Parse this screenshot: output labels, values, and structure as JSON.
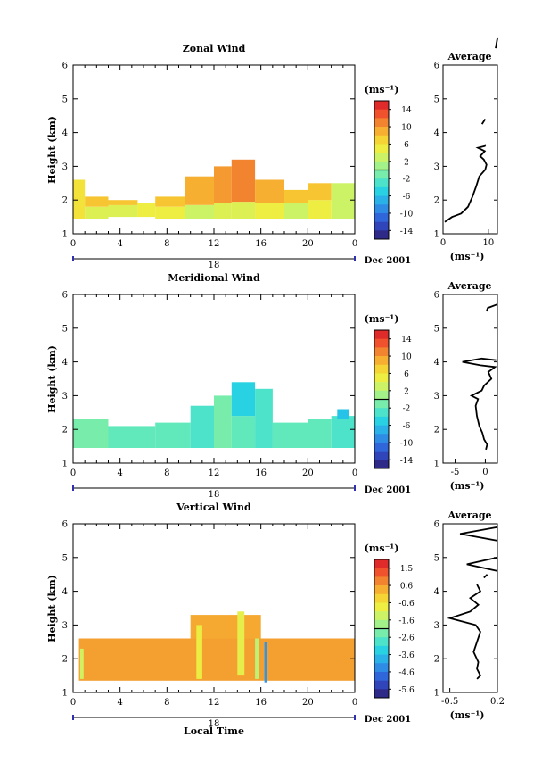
{
  "figure": {
    "date_label": "Dec 2001",
    "day_label": "18",
    "xlabel_bottom": "Local Time",
    "x_ticks": [
      "0",
      "4",
      "8",
      "12",
      "16",
      "20",
      "0"
    ]
  },
  "chart_data": [
    {
      "type": "heatmap",
      "title": "Zonal Wind",
      "ylabel": "Height (km)",
      "xlabel": "",
      "ylim": [
        1,
        6
      ],
      "y_ticks": [
        "1",
        "2",
        "3",
        "4",
        "5",
        "6"
      ],
      "colorbar": {
        "unit_label": "(ms⁻¹)",
        "ticks": [
          "14",
          "10",
          "6",
          "2",
          "-2",
          "-6",
          "-10",
          "-14"
        ],
        "range": [
          -16,
          16
        ]
      },
      "profile": {
        "title": "Average",
        "xlabel": "(ms⁻¹)",
        "x_ticks": [
          "0",
          "10"
        ],
        "xlim": [
          0,
          12
        ],
        "points": [
          [
            0.4,
            1.35
          ],
          [
            2,
            1.5
          ],
          [
            4,
            1.6
          ],
          [
            5.5,
            1.8
          ],
          [
            6.5,
            2.1
          ],
          [
            7.3,
            2.4
          ],
          [
            8,
            2.7
          ],
          [
            9.3,
            2.9
          ],
          [
            9.6,
            3.05
          ],
          [
            9,
            3.2
          ],
          [
            8.2,
            3.3
          ],
          [
            9.2,
            3.45
          ],
          [
            7.7,
            3.55
          ],
          [
            9.2,
            3.6
          ],
          [
            9.4,
            3.65
          ]
        ],
        "fragments": [
          [
            [
              8.6,
              4.25
            ],
            [
              9.3,
              4.4
            ]
          ],
          [
            [
              11.6,
              6.5
            ],
            [
              12,
              6.8
            ]
          ]
        ]
      },
      "field": {
        "x_range_hours": [
          0,
          24
        ],
        "blocks": [
          {
            "t0": 0.0,
            "t1": 1.0,
            "h0": 1.45,
            "h1": 2.6,
            "v": 6
          },
          {
            "t0": 1.0,
            "t1": 3.0,
            "h0": 1.45,
            "h1": 1.8,
            "v": 4
          },
          {
            "t0": 1.0,
            "t1": 3.0,
            "h0": 1.8,
            "h1": 2.1,
            "v": 8
          },
          {
            "t0": 3.0,
            "t1": 5.5,
            "h0": 1.5,
            "h1": 1.85,
            "v": 4
          },
          {
            "t0": 3.0,
            "t1": 5.5,
            "h0": 1.85,
            "h1": 2.0,
            "v": 8
          },
          {
            "t0": 5.5,
            "t1": 7.0,
            "h0": 1.5,
            "h1": 1.9,
            "v": 5
          },
          {
            "t0": 7.0,
            "t1": 9.5,
            "h0": 1.45,
            "h1": 1.8,
            "v": 5
          },
          {
            "t0": 7.0,
            "t1": 9.5,
            "h0": 1.8,
            "h1": 2.1,
            "v": 8
          },
          {
            "t0": 9.5,
            "t1": 12.0,
            "h0": 1.45,
            "h1": 1.85,
            "v": 3
          },
          {
            "t0": 9.5,
            "t1": 12.0,
            "h0": 1.85,
            "h1": 2.7,
            "v": 9
          },
          {
            "t0": 12.0,
            "t1": 13.5,
            "h0": 1.45,
            "h1": 1.9,
            "v": 4
          },
          {
            "t0": 12.0,
            "t1": 13.5,
            "h0": 1.9,
            "h1": 3.0,
            "v": 10
          },
          {
            "t0": 13.5,
            "t1": 15.5,
            "h0": 1.45,
            "h1": 1.95,
            "v": 4
          },
          {
            "t0": 13.5,
            "t1": 15.5,
            "h0": 1.95,
            "h1": 3.2,
            "v": 11
          },
          {
            "t0": 15.5,
            "t1": 18.0,
            "h0": 1.45,
            "h1": 1.9,
            "v": 5
          },
          {
            "t0": 15.5,
            "t1": 18.0,
            "h0": 1.9,
            "h1": 2.6,
            "v": 9
          },
          {
            "t0": 18.0,
            "t1": 20.0,
            "h0": 1.45,
            "h1": 1.9,
            "v": 3
          },
          {
            "t0": 18.0,
            "t1": 20.0,
            "h0": 1.9,
            "h1": 2.3,
            "v": 8
          },
          {
            "t0": 20.0,
            "t1": 22.0,
            "h0": 1.45,
            "h1": 2.0,
            "v": 5
          },
          {
            "t0": 20.0,
            "t1": 22.0,
            "h0": 2.0,
            "h1": 2.5,
            "v": 8
          },
          {
            "t0": 22.0,
            "t1": 24.0,
            "h0": 1.45,
            "h1": 2.5,
            "v": 3
          }
        ]
      }
    },
    {
      "type": "heatmap",
      "title": "Meridional Wind",
      "ylabel": "Height (km)",
      "xlabel": "",
      "ylim": [
        1,
        6
      ],
      "y_ticks": [
        "1",
        "2",
        "3",
        "4",
        "5",
        "6"
      ],
      "colorbar": {
        "unit_label": "(ms⁻¹)",
        "ticks": [
          "14",
          "10",
          "6",
          "2",
          "-2",
          "-6",
          "-10",
          "-14"
        ],
        "range": [
          -16,
          16
        ]
      },
      "profile": {
        "title": "Average",
        "xlabel": "(ms⁻¹)",
        "x_ticks": [
          "-5",
          "0"
        ],
        "xlim": [
          -7,
          2
        ],
        "points": [
          [
            0.1,
            1.4
          ],
          [
            0.3,
            1.55
          ],
          [
            -0.2,
            1.7
          ],
          [
            -0.5,
            1.9
          ],
          [
            -1,
            2.1
          ],
          [
            -1.4,
            2.4
          ],
          [
            -1.6,
            2.7
          ],
          [
            -1.2,
            2.9
          ],
          [
            -2.3,
            3.0
          ],
          [
            -0.6,
            3.15
          ],
          [
            -0.2,
            3.3
          ],
          [
            1,
            3.5
          ],
          [
            0.5,
            3.7
          ],
          [
            1.6,
            3.85
          ],
          [
            -0.8,
            3.9
          ],
          [
            -3.8,
            4.0
          ],
          [
            -0.6,
            4.1
          ],
          [
            1.8,
            4.05
          ]
        ],
        "fragments": [
          [
            [
              0.2,
              5.5
            ],
            [
              0.4,
              5.6
            ],
            [
              1.9,
              5.7
            ]
          ]
        ]
      },
      "field": {
        "x_range_hours": [
          0,
          24
        ],
        "blocks": [
          {
            "t0": 0.0,
            "t1": 3.0,
            "h0": 1.45,
            "h1": 2.3,
            "v": -1
          },
          {
            "t0": 3.0,
            "t1": 7.0,
            "h0": 1.45,
            "h1": 2.1,
            "v": -2
          },
          {
            "t0": 7.0,
            "t1": 10.0,
            "h0": 1.45,
            "h1": 2.2,
            "v": -2
          },
          {
            "t0": 10.0,
            "t1": 12.0,
            "h0": 1.45,
            "h1": 2.7,
            "v": -3
          },
          {
            "t0": 12.0,
            "t1": 13.5,
            "h0": 1.45,
            "h1": 3.0,
            "v": -1
          },
          {
            "t0": 13.5,
            "t1": 15.5,
            "h0": 1.45,
            "h1": 2.4,
            "v": -2
          },
          {
            "t0": 13.5,
            "t1": 15.5,
            "h0": 2.4,
            "h1": 3.4,
            "v": -5
          },
          {
            "t0": 15.5,
            "t1": 17.0,
            "h0": 1.45,
            "h1": 3.2,
            "v": -3
          },
          {
            "t0": 17.0,
            "t1": 20.0,
            "h0": 1.45,
            "h1": 2.2,
            "v": -2
          },
          {
            "t0": 20.0,
            "t1": 22.0,
            "h0": 1.45,
            "h1": 2.3,
            "v": -2
          },
          {
            "t0": 22.0,
            "t1": 24.0,
            "h0": 1.45,
            "h1": 2.4,
            "v": -3
          },
          {
            "t0": 22.5,
            "t1": 23.5,
            "h0": 2.3,
            "h1": 2.6,
            "v": -6
          }
        ]
      }
    },
    {
      "type": "heatmap",
      "title": "Vertical Wind",
      "ylabel": "Height (km)",
      "xlabel": "Local Time",
      "ylim": [
        1,
        6
      ],
      "y_ticks": [
        "1",
        "2",
        "3",
        "4",
        "5",
        "6"
      ],
      "colorbar": {
        "unit_label": "(ms⁻¹)",
        "ticks": [
          "1.5",
          "0.6",
          "-0.6",
          "-1.6",
          "-2.6",
          "-3.6",
          "-4.6",
          "-5.6"
        ],
        "range": [
          -6.1,
          2.0
        ]
      },
      "profile": {
        "title": "Average",
        "xlabel": "(ms⁻¹)",
        "x_ticks": [
          "-0.5",
          "0.2"
        ],
        "xlim": [
          -0.6,
          0.2
        ],
        "points": [
          [
            -0.1,
            1.4
          ],
          [
            -0.05,
            1.5
          ],
          [
            -0.1,
            1.7
          ],
          [
            -0.08,
            1.9
          ],
          [
            -0.15,
            2.2
          ],
          [
            -0.1,
            2.5
          ],
          [
            -0.05,
            2.8
          ],
          [
            -0.12,
            3.0
          ],
          [
            -0.5,
            3.2
          ],
          [
            -0.2,
            3.4
          ],
          [
            -0.08,
            3.6
          ],
          [
            -0.2,
            3.8
          ],
          [
            -0.05,
            4.0
          ],
          [
            -0.1,
            4.2
          ]
        ],
        "fragments": [
          [
            [
              0.0,
              4.4
            ],
            [
              0.05,
              4.5
            ]
          ],
          [
            [
              0.2,
              4.6
            ],
            [
              -0.25,
              4.8
            ],
            [
              0.2,
              5.0
            ]
          ],
          [
            [
              0.2,
              5.5
            ],
            [
              -0.35,
              5.7
            ],
            [
              0.2,
              5.9
            ]
          ]
        ]
      },
      "field": {
        "x_range_hours": [
          0,
          24
        ],
        "blocks": [
          {
            "t0": 0.5,
            "t1": 24.0,
            "h0": 1.35,
            "h1": 2.6,
            "v": 0.4
          },
          {
            "t0": 10.0,
            "t1": 16.0,
            "h0": 2.6,
            "h1": 3.3,
            "v": 0.3
          },
          {
            "t0": 0.6,
            "t1": 0.9,
            "h0": 1.4,
            "h1": 2.3,
            "v": -1.2
          },
          {
            "t0": 10.5,
            "t1": 11.0,
            "h0": 1.4,
            "h1": 3.0,
            "v": -0.8
          },
          {
            "t0": 14.0,
            "t1": 14.6,
            "h0": 1.5,
            "h1": 3.4,
            "v": -0.9
          },
          {
            "t0": 15.5,
            "t1": 15.8,
            "h0": 1.4,
            "h1": 2.6,
            "v": -1.5
          },
          {
            "t0": 16.3,
            "t1": 16.5,
            "h0": 1.3,
            "h1": 2.5,
            "v": -4.2
          }
        ]
      }
    }
  ]
}
